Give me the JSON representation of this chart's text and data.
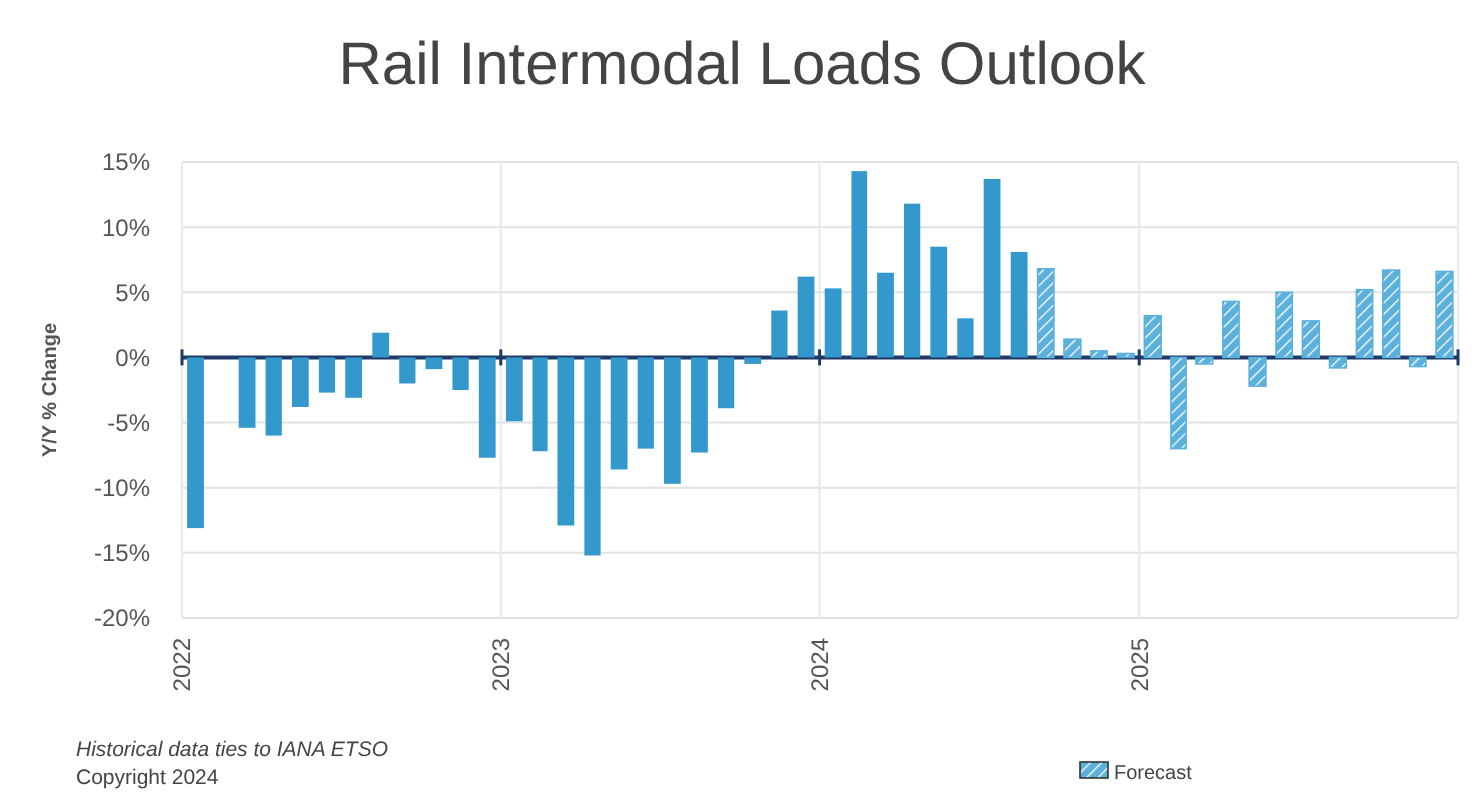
{
  "chart_data": {
    "type": "bar",
    "title": "Rail Intermodal Loads Outlook",
    "ylabel": "Y/Y % Change",
    "x": [
      "2022-01",
      "2022-02",
      "2022-03",
      "2022-04",
      "2022-05",
      "2022-06",
      "2022-07",
      "2022-08",
      "2022-09",
      "2022-10",
      "2022-11",
      "2022-12",
      "2023-01",
      "2023-02",
      "2023-03",
      "2023-04",
      "2023-05",
      "2023-06",
      "2023-07",
      "2023-08",
      "2023-09",
      "2023-10",
      "2023-11",
      "2023-12",
      "2024-01",
      "2024-02",
      "2024-03",
      "2024-04",
      "2024-05",
      "2024-06",
      "2024-07",
      "2024-08",
      "2024-09",
      "2024-10",
      "2024-11",
      "2024-12",
      "2025-01",
      "2025-02",
      "2025-03",
      "2025-04",
      "2025-05",
      "2025-06",
      "2025-07",
      "2025-08",
      "2025-09",
      "2025-10",
      "2025-11",
      "2025-12"
    ],
    "series": [
      {
        "color": "#3399cc",
        "values": [
          -13.1,
          null,
          -5.4,
          -6.0,
          -3.8,
          -2.7,
          -3.1,
          1.9,
          -2.0,
          -0.9,
          -2.5,
          -7.7,
          -4.9,
          -7.2,
          -12.9,
          -15.2,
          -8.6,
          -7.0,
          -9.7,
          -7.3,
          -3.9,
          -0.5,
          3.6,
          6.2,
          5.3,
          14.3,
          6.5,
          11.8,
          8.5,
          3.0,
          13.7,
          8.1,
          null,
          null,
          null,
          null,
          null,
          null,
          null,
          null,
          null,
          null,
          null,
          null,
          null,
          null,
          null,
          null
        ]
      },
      {
        "name": "Forecast",
        "color": "#5bb0dc",
        "values": [
          null,
          null,
          null,
          null,
          null,
          null,
          null,
          null,
          null,
          null,
          null,
          null,
          null,
          null,
          null,
          null,
          null,
          null,
          null,
          null,
          null,
          null,
          null,
          null,
          null,
          null,
          null,
          null,
          null,
          null,
          null,
          null,
          6.8,
          1.4,
          0.5,
          0.3,
          3.2,
          -7.0,
          -0.5,
          4.3,
          -2.2,
          5.0,
          2.8,
          -0.8,
          5.2,
          6.7,
          -0.7,
          6.6
        ]
      }
    ],
    "xlim": [
      "2022-01",
      "2026-01"
    ],
    "xticks": [
      {
        "value": "2022-01",
        "label": "2022"
      },
      {
        "value": "2023-01",
        "label": "2023"
      },
      {
        "value": "2024-01",
        "label": "2024"
      },
      {
        "value": "2025-01",
        "label": "2025"
      }
    ],
    "ylim": [
      -20,
      15
    ],
    "yticks": [
      {
        "value": -20,
        "label": "-20%"
      },
      {
        "value": -15,
        "label": "-15%"
      },
      {
        "value": -10,
        "label": "-10%"
      },
      {
        "value": -5,
        "label": "-5%"
      },
      {
        "value": 0,
        "label": "0%"
      },
      {
        "value": 5,
        "label": "5%"
      },
      {
        "value": 10,
        "label": "10%"
      },
      {
        "value": 15,
        "label": "15%"
      }
    ],
    "grid": true,
    "legend": "bottom right",
    "ref_lines": [
      {
        "axis": "y",
        "value": 0,
        "color": "#1f3a66"
      }
    ],
    "annotations": [
      "Historical data ties to IANA ETSO",
      "Copyright 2024"
    ]
  }
}
